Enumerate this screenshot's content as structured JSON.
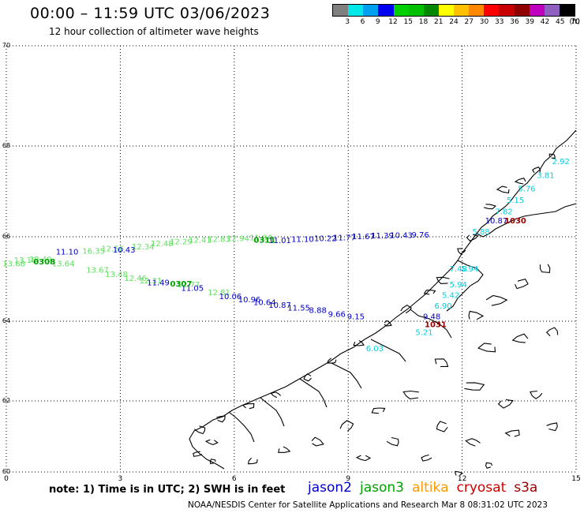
{
  "header": {
    "title": "00:00 – 11:59 UTC 03/06/2023",
    "subtitle": "12 hour collection of altimeter wave heights"
  },
  "scale": {
    "colors": [
      "#808080",
      "#00e8e8",
      "#00a0f0",
      "#0000f0",
      "#00d000",
      "#00c000",
      "#008800",
      "#ffff00",
      "#ffc000",
      "#ff8800",
      "#ff0000",
      "#c80000",
      "#900000",
      "#c000c0",
      "#9060c0",
      "#000000"
    ],
    "labels": [
      "3",
      "6",
      "9",
      "12",
      "15",
      "18",
      "21",
      "24",
      "27",
      "30",
      "33",
      "36",
      "39",
      "42",
      "45",
      "70",
      "(ft)"
    ]
  },
  "axes": {
    "x_ticks": [
      "0",
      "3",
      "6",
      "9",
      "12",
      "15"
    ],
    "y_ticks": [
      "70",
      "68",
      "66",
      "64",
      "62",
      "60"
    ]
  },
  "colors": {
    "jason2": "#0000c8",
    "jason3": "#00a000",
    "altika": "#ff9900",
    "cryosat": "#cc0000",
    "s3a": "#990000",
    "cyan": "#00d0e0",
    "lightgreen": "#60e060"
  },
  "tracks": {
    "track_cyan": [
      {
        "v": "2.92",
        "c": "cyan",
        "lon": 14.6,
        "lat": 67.6
      },
      {
        "v": "3.81",
        "c": "cyan",
        "lon": 14.2,
        "lat": 67.3
      },
      {
        "v": "5.76",
        "c": "cyan",
        "lon": 13.7,
        "lat": 67.0
      },
      {
        "v": "5.15",
        "c": "cyan",
        "lon": 13.4,
        "lat": 66.75
      },
      {
        "v": "7.82",
        "c": "cyan",
        "lon": 13.1,
        "lat": 66.5
      },
      {
        "v": "10.87",
        "c": "jason2",
        "lon": 12.9,
        "lat": 66.3
      },
      {
        "v": "5.88",
        "c": "cyan",
        "lon": 12.5,
        "lat": 66.05
      },
      {
        "v": "7.48",
        "c": "cyan",
        "lon": 11.9,
        "lat": 65.18
      },
      {
        "v": "5.94",
        "c": "cyan",
        "lon": 12.2,
        "lat": 65.18
      },
      {
        "v": "5.94",
        "c": "cyan",
        "lon": 11.9,
        "lat": 64.8
      },
      {
        "v": "5.42",
        "c": "cyan",
        "lon": 11.7,
        "lat": 64.55
      },
      {
        "v": "6.90",
        "c": "cyan",
        "lon": 11.5,
        "lat": 64.3
      },
      {
        "v": "9.48",
        "c": "jason2",
        "lon": 11.2,
        "lat": 64.05
      },
      {
        "v": "5.21",
        "c": "cyan",
        "lon": 11.0,
        "lat": 63.65
      },
      {
        "v": "6.03",
        "c": "cyan",
        "lon": 9.7,
        "lat": 63.25
      }
    ],
    "track_jason2": [
      {
        "v": "11.10",
        "lon": 1.6,
        "lat": 65.58
      },
      {
        "v": "10.43",
        "lon": 3.1,
        "lat": 65.63
      },
      {
        "v": "11.49",
        "lon": 4.0,
        "lat": 64.85
      },
      {
        "v": "11.05",
        "lon": 4.9,
        "lat": 64.72
      },
      {
        "v": "10.06",
        "lon": 5.9,
        "lat": 64.52
      },
      {
        "v": "10.96",
        "lon": 6.4,
        "lat": 64.45
      },
      {
        "v": "10.64",
        "lon": 6.8,
        "lat": 64.38
      },
      {
        "v": "10.87",
        "lon": 7.2,
        "lat": 64.32
      },
      {
        "v": "11.55",
        "lon": 7.7,
        "lat": 64.25
      },
      {
        "v": "8.88",
        "lon": 8.2,
        "lat": 64.2
      },
      {
        "v": "9.66",
        "lon": 8.7,
        "lat": 64.1
      },
      {
        "v": "9.15",
        "lon": 9.2,
        "lat": 64.05
      },
      {
        "v": "11.01",
        "lon": 7.2,
        "lat": 65.85
      },
      {
        "v": "11.10",
        "lon": 7.8,
        "lat": 65.88
      },
      {
        "v": "10.22",
        "lon": 8.4,
        "lat": 65.9
      },
      {
        "v": "11.77",
        "lon": 8.9,
        "lat": 65.92
      },
      {
        "v": "11.67",
        "lon": 9.4,
        "lat": 65.94
      },
      {
        "v": "11.39",
        "lon": 9.9,
        "lat": 65.96
      },
      {
        "v": "10.43",
        "lon": 10.4,
        "lat": 65.97
      },
      {
        "v": "9.76",
        "lon": 10.9,
        "lat": 65.98
      }
    ],
    "track_green": [
      {
        "v": "13.68",
        "lon": 0.2,
        "lat": 65.3
      },
      {
        "v": "13.18",
        "lon": 0.5,
        "lat": 65.38
      },
      {
        "v": "13.49",
        "lon": 0.9,
        "lat": 65.4
      },
      {
        "v": "13.64",
        "lon": 1.5,
        "lat": 65.3
      },
      {
        "v": "13.67",
        "lon": 2.4,
        "lat": 65.15
      },
      {
        "v": "13.48",
        "lon": 2.9,
        "lat": 65.05
      },
      {
        "v": "12.46",
        "lon": 3.4,
        "lat": 64.95
      },
      {
        "v": "12.31",
        "lon": 3.8,
        "lat": 64.9
      },
      {
        "v": "12.77",
        "lon": 4.8,
        "lat": 64.8
      },
      {
        "v": "12.81",
        "lon": 5.6,
        "lat": 64.62
      },
      {
        "v": "16.35",
        "lon": 2.3,
        "lat": 65.6
      },
      {
        "v": "12.56",
        "lon": 2.8,
        "lat": 65.65
      },
      {
        "v": "12.34",
        "lon": 3.6,
        "lat": 65.7
      },
      {
        "v": "12.48",
        "lon": 4.1,
        "lat": 65.78
      },
      {
        "v": "12.29",
        "lon": 4.6,
        "lat": 65.82
      },
      {
        "v": "12.41",
        "lon": 5.1,
        "lat": 65.86
      },
      {
        "v": "12.83",
        "lon": 5.6,
        "lat": 65.88
      },
      {
        "v": "12.94",
        "lon": 6.1,
        "lat": 65.9
      },
      {
        "v": "11.84",
        "lon": 6.7,
        "lat": 65.92
      }
    ],
    "passes": [
      {
        "v": "0308",
        "c": "jason3",
        "lon": 1.0,
        "lat": 65.35,
        "size": 12
      },
      {
        "v": "0307",
        "c": "jason3",
        "lon": 4.6,
        "lat": 64.82,
        "size": 12
      },
      {
        "v": "0311",
        "c": "jason3",
        "lon": 6.8,
        "lat": 65.86,
        "size": 12
      },
      {
        "v": "1030",
        "c": "s3a",
        "lon": 13.4,
        "lat": 66.3,
        "size": 12
      },
      {
        "v": "1031",
        "c": "s3a",
        "lon": 11.3,
        "lat": 63.85,
        "size": 12
      }
    ]
  },
  "footer": {
    "note": "note:  1) Time is in UTC; 2) SWH is in feet",
    "legend": [
      {
        "label": "jason2",
        "color": "#0000c8"
      },
      {
        "label": "jason3",
        "color": "#00a000"
      },
      {
        "label": "altika",
        "color": "#ff9900"
      },
      {
        "label": "cryosat",
        "color": "#cc0000"
      },
      {
        "label": "s3a",
        "color": "#990000"
      }
    ],
    "credit": "NOAA/NESDIS Center for Satellite Applications and Research    Mar  8 08:31:02 UTC 2023"
  }
}
